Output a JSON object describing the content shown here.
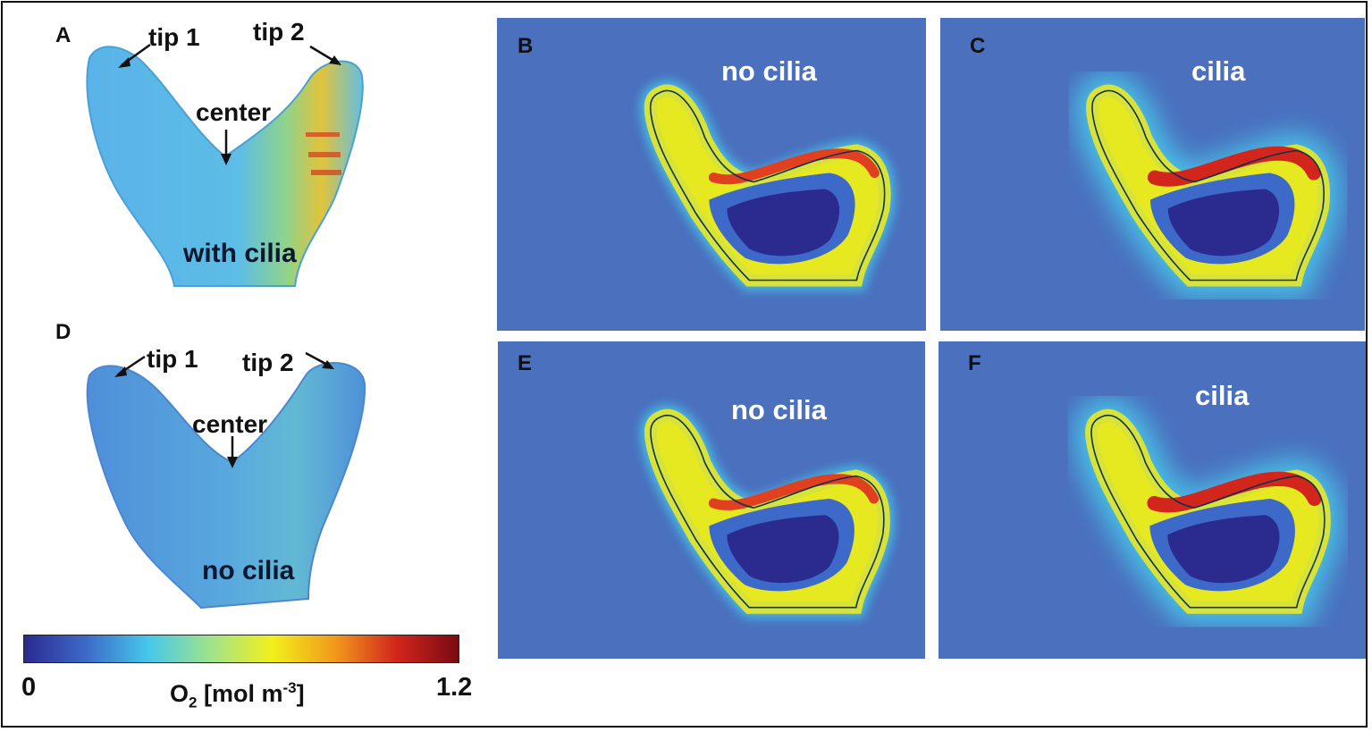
{
  "panels": {
    "A": {
      "letter": "A",
      "tip1": "tip 1",
      "tip2": "tip 2",
      "center": "center",
      "condition": "with cilia"
    },
    "B": {
      "letter": "B",
      "condition": "no cilia"
    },
    "C": {
      "letter": "C",
      "condition": "cilia"
    },
    "D": {
      "letter": "D",
      "tip1": "tip 1",
      "tip2": "tip 2",
      "center": "center",
      "condition": "no cilia"
    },
    "E": {
      "letter": "E",
      "condition": "no cilia"
    },
    "F": {
      "letter": "F",
      "condition": "cilia"
    }
  },
  "colorbar": {
    "min_label": "0",
    "max_label": "1.2",
    "title_prefix": "O",
    "title_sub": "2",
    "title_mid": " [mol m",
    "title_sup": "-3",
    "title_suffix": "]",
    "colors": [
      "#2b2a8f",
      "#3d6ac9",
      "#46c7ea",
      "#9fe38c",
      "#f2f01c",
      "#f29a1a",
      "#d2261c",
      "#7a0a12"
    ]
  },
  "colors": {
    "background_field": "#4a70be",
    "body_low": "#5fb1e6",
    "frame": "#111111"
  }
}
